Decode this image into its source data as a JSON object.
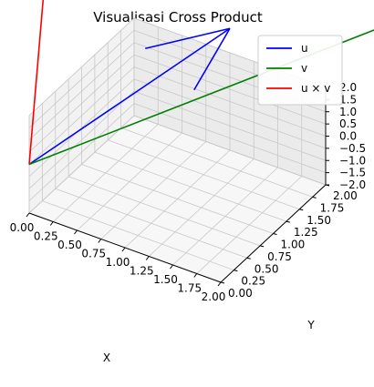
{
  "chart_data": {
    "type": "line",
    "title": "Visualisasi Cross Product",
    "xlabel": "X",
    "ylabel": "Y",
    "zlabel": "",
    "xlim": [
      0,
      2
    ],
    "ylim": [
      0,
      2
    ],
    "zlim": [
      -2,
      2
    ],
    "x_ticks": [
      "0.00",
      "0.25",
      "0.50",
      "0.75",
      "1.00",
      "1.25",
      "1.50",
      "1.75",
      "2.00"
    ],
    "y_ticks": [
      "0.00",
      "0.25",
      "0.50",
      "0.75",
      "1.00",
      "1.25",
      "1.50",
      "1.75",
      "2.00"
    ],
    "z_ticks": [
      "−2.0",
      "−1.5",
      "−1.0",
      "−0.5",
      "0.0",
      "0.5",
      "1.0",
      "1.5",
      "2.0"
    ],
    "grid": true,
    "legend_position": "top-right",
    "series": [
      {
        "name": "u",
        "color": "#0000ff",
        "origin": [
          0,
          0,
          0
        ],
        "vector": [
          1,
          2,
          3
        ]
      },
      {
        "name": "v",
        "color": "#008000",
        "origin": [
          0,
          0,
          0
        ],
        "vector": [
          4,
          5,
          6
        ]
      },
      {
        "name": "u × v",
        "color": "#ff0000",
        "origin": [
          0,
          0,
          0
        ],
        "vector": [
          -3,
          6,
          -3
        ]
      }
    ]
  }
}
